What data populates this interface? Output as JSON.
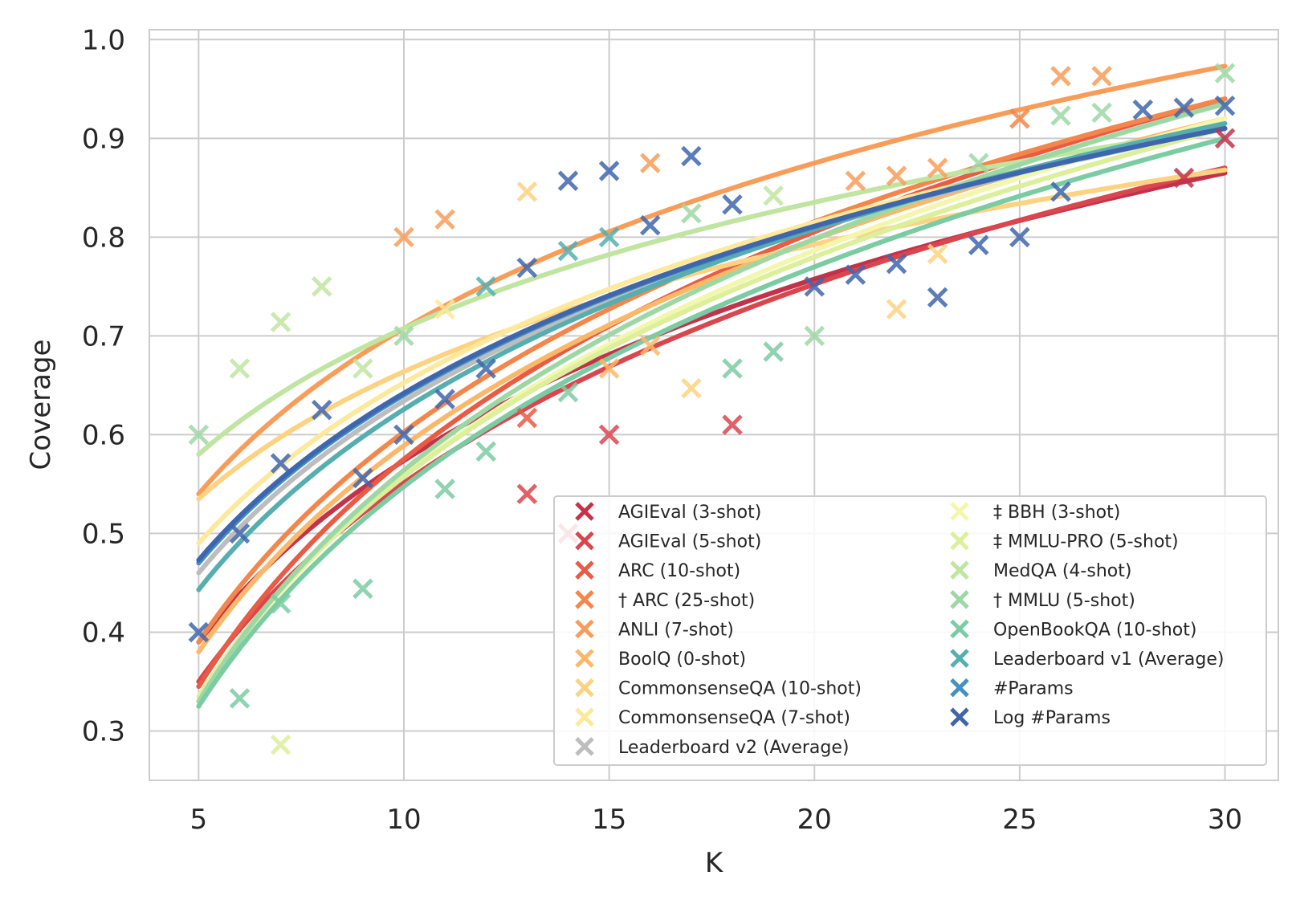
{
  "chart_data": {
    "type": "scatter",
    "title": "",
    "xlabel": "K",
    "ylabel": "Coverage",
    "xlim": [
      3.8,
      31.3
    ],
    "ylim": [
      0.25,
      1.01
    ],
    "x_ticks": [
      5,
      10,
      15,
      20,
      25,
      30
    ],
    "y_ticks": [
      0.3,
      0.4,
      0.5,
      0.6,
      0.7,
      0.8,
      0.9,
      1.0
    ],
    "x_tick_labels": [
      "5",
      "10",
      "15",
      "20",
      "25",
      "30"
    ],
    "y_tick_labels": [
      "0.3",
      "0.4",
      "0.5",
      "0.6",
      "0.7",
      "0.8",
      "0.9",
      "1.0"
    ],
    "grid": true,
    "legend_position": "lower-right",
    "legend_columns": 2,
    "fit": "logarithmic trend line per series, y = a + b*ln(K)",
    "series": [
      {
        "name": "AGIEval (3-shot)",
        "color": "#c2334b",
        "fit_start": 0.39,
        "fit_end": 0.865,
        "points": [
          [
            29,
            0.86
          ],
          [
            30,
            0.9
          ]
        ]
      },
      {
        "name": "AGIEval (5-shot)",
        "color": "#d9464e",
        "fit_start": 0.35,
        "fit_end": 0.87,
        "points": [
          [
            13,
            0.54
          ],
          [
            14,
            0.5
          ],
          [
            15,
            0.6
          ],
          [
            18,
            0.61
          ]
        ]
      },
      {
        "name": "ARC (10-shot)",
        "color": "#e85b44",
        "fit_start": 0.345,
        "fit_end": 0.94,
        "points": [
          [
            13,
            0.617
          ]
        ]
      },
      {
        "name": "† ARC (25-shot)",
        "color": "#f3864a",
        "fit_start": 0.39,
        "fit_end": 0.94,
        "points": [
          [
            25,
            0.92
          ]
        ]
      },
      {
        "name": "ANLI (7-shot)",
        "color": "#f89d59",
        "fit_start": 0.54,
        "fit_end": 0.973,
        "points": [
          [
            10,
            0.8
          ],
          [
            11,
            0.818
          ],
          [
            16,
            0.875
          ],
          [
            21,
            0.857
          ],
          [
            22,
            0.862
          ],
          [
            23,
            0.87
          ],
          [
            26,
            0.963
          ],
          [
            27,
            0.963
          ]
        ]
      },
      {
        "name": "BoolQ (0-shot)",
        "color": "#fbb868",
        "fit_start": 0.38,
        "fit_end": 0.92,
        "points": [
          [
            15,
            0.667
          ],
          [
            16,
            0.69
          ]
        ]
      },
      {
        "name": "CommonsenseQA (10-shot)",
        "color": "#fdd281",
        "fit_start": 0.535,
        "fit_end": 0.868,
        "points": [
          [
            13,
            0.846
          ],
          [
            17,
            0.647
          ],
          [
            22,
            0.727
          ],
          [
            23,
            0.783
          ]
        ]
      },
      {
        "name": "CommonsenseQA (7-shot)",
        "color": "#fee89a",
        "fit_start": 0.49,
        "fit_end": 0.91,
        "points": [
          [
            11,
            0.727
          ]
        ]
      },
      {
        "name": "Leaderboard v2 (Average)",
        "color": "#bdbdbd",
        "fit_start": 0.46,
        "fit_end": 0.91,
        "points": []
      },
      {
        "name": "‡ BBH (3-shot)",
        "color": "#f3f7ad",
        "fit_start": 0.33,
        "fit_end": 0.92,
        "points": []
      },
      {
        "name": "‡ MMLU-PRO (5-shot)",
        "color": "#dcef9b",
        "fit_start": 0.335,
        "fit_end": 0.91,
        "points": [
          [
            7,
            0.286
          ]
        ]
      },
      {
        "name": "MedQA (4-shot)",
        "color": "#bfe5a0",
        "fit_start": 0.58,
        "fit_end": 0.91,
        "points": [
          [
            6,
            0.667
          ],
          [
            7,
            0.714
          ],
          [
            8,
            0.75
          ],
          [
            9,
            0.667
          ],
          [
            19,
            0.842
          ]
        ]
      },
      {
        "name": "† MMLU (5-shot)",
        "color": "#9dd8a4",
        "fit_start": 0.33,
        "fit_end": 0.935,
        "points": [
          [
            5,
            0.6
          ],
          [
            10,
            0.7
          ],
          [
            17,
            0.824
          ],
          [
            20,
            0.7
          ],
          [
            24,
            0.875
          ],
          [
            26,
            0.923
          ],
          [
            27,
            0.926
          ],
          [
            30,
            0.966
          ]
        ]
      },
      {
        "name": "OpenBookQA (10-shot)",
        "color": "#7bcba3",
        "fit_start": 0.325,
        "fit_end": 0.9,
        "points": [
          [
            6,
            0.333
          ],
          [
            7,
            0.429
          ],
          [
            9,
            0.444
          ],
          [
            11,
            0.545
          ],
          [
            12,
            0.583
          ],
          [
            14,
            0.643
          ],
          [
            18,
            0.667
          ],
          [
            19,
            0.684
          ]
        ]
      },
      {
        "name": "Leaderboard v1 (Average)",
        "color": "#56aeb0",
        "fit_start": 0.443,
        "fit_end": 0.915,
        "points": [
          [
            12,
            0.75
          ],
          [
            14,
            0.786
          ],
          [
            15,
            0.8
          ]
        ]
      },
      {
        "name": "#Params",
        "color": "#4291c1",
        "fit_start": 0.47,
        "fit_end": 0.91,
        "points": []
      },
      {
        "name": "Log #Params",
        "color": "#3f66ad",
        "fit_start": 0.473,
        "fit_end": 0.91,
        "points": [
          [
            5,
            0.4
          ],
          [
            6,
            0.5
          ],
          [
            7,
            0.571
          ],
          [
            8,
            0.625
          ],
          [
            9,
            0.556
          ],
          [
            10,
            0.6
          ],
          [
            11,
            0.636
          ],
          [
            12,
            0.667
          ],
          [
            13,
            0.769
          ],
          [
            14,
            0.857
          ],
          [
            15,
            0.867
          ],
          [
            16,
            0.812
          ],
          [
            17,
            0.882
          ],
          [
            18,
            0.833
          ],
          [
            20,
            0.75
          ],
          [
            21,
            0.762
          ],
          [
            22,
            0.773
          ],
          [
            23,
            0.739
          ],
          [
            24,
            0.792
          ],
          [
            25,
            0.8
          ],
          [
            26,
            0.846
          ],
          [
            28,
            0.929
          ],
          [
            29,
            0.931
          ],
          [
            30,
            0.933
          ]
        ]
      }
    ]
  }
}
